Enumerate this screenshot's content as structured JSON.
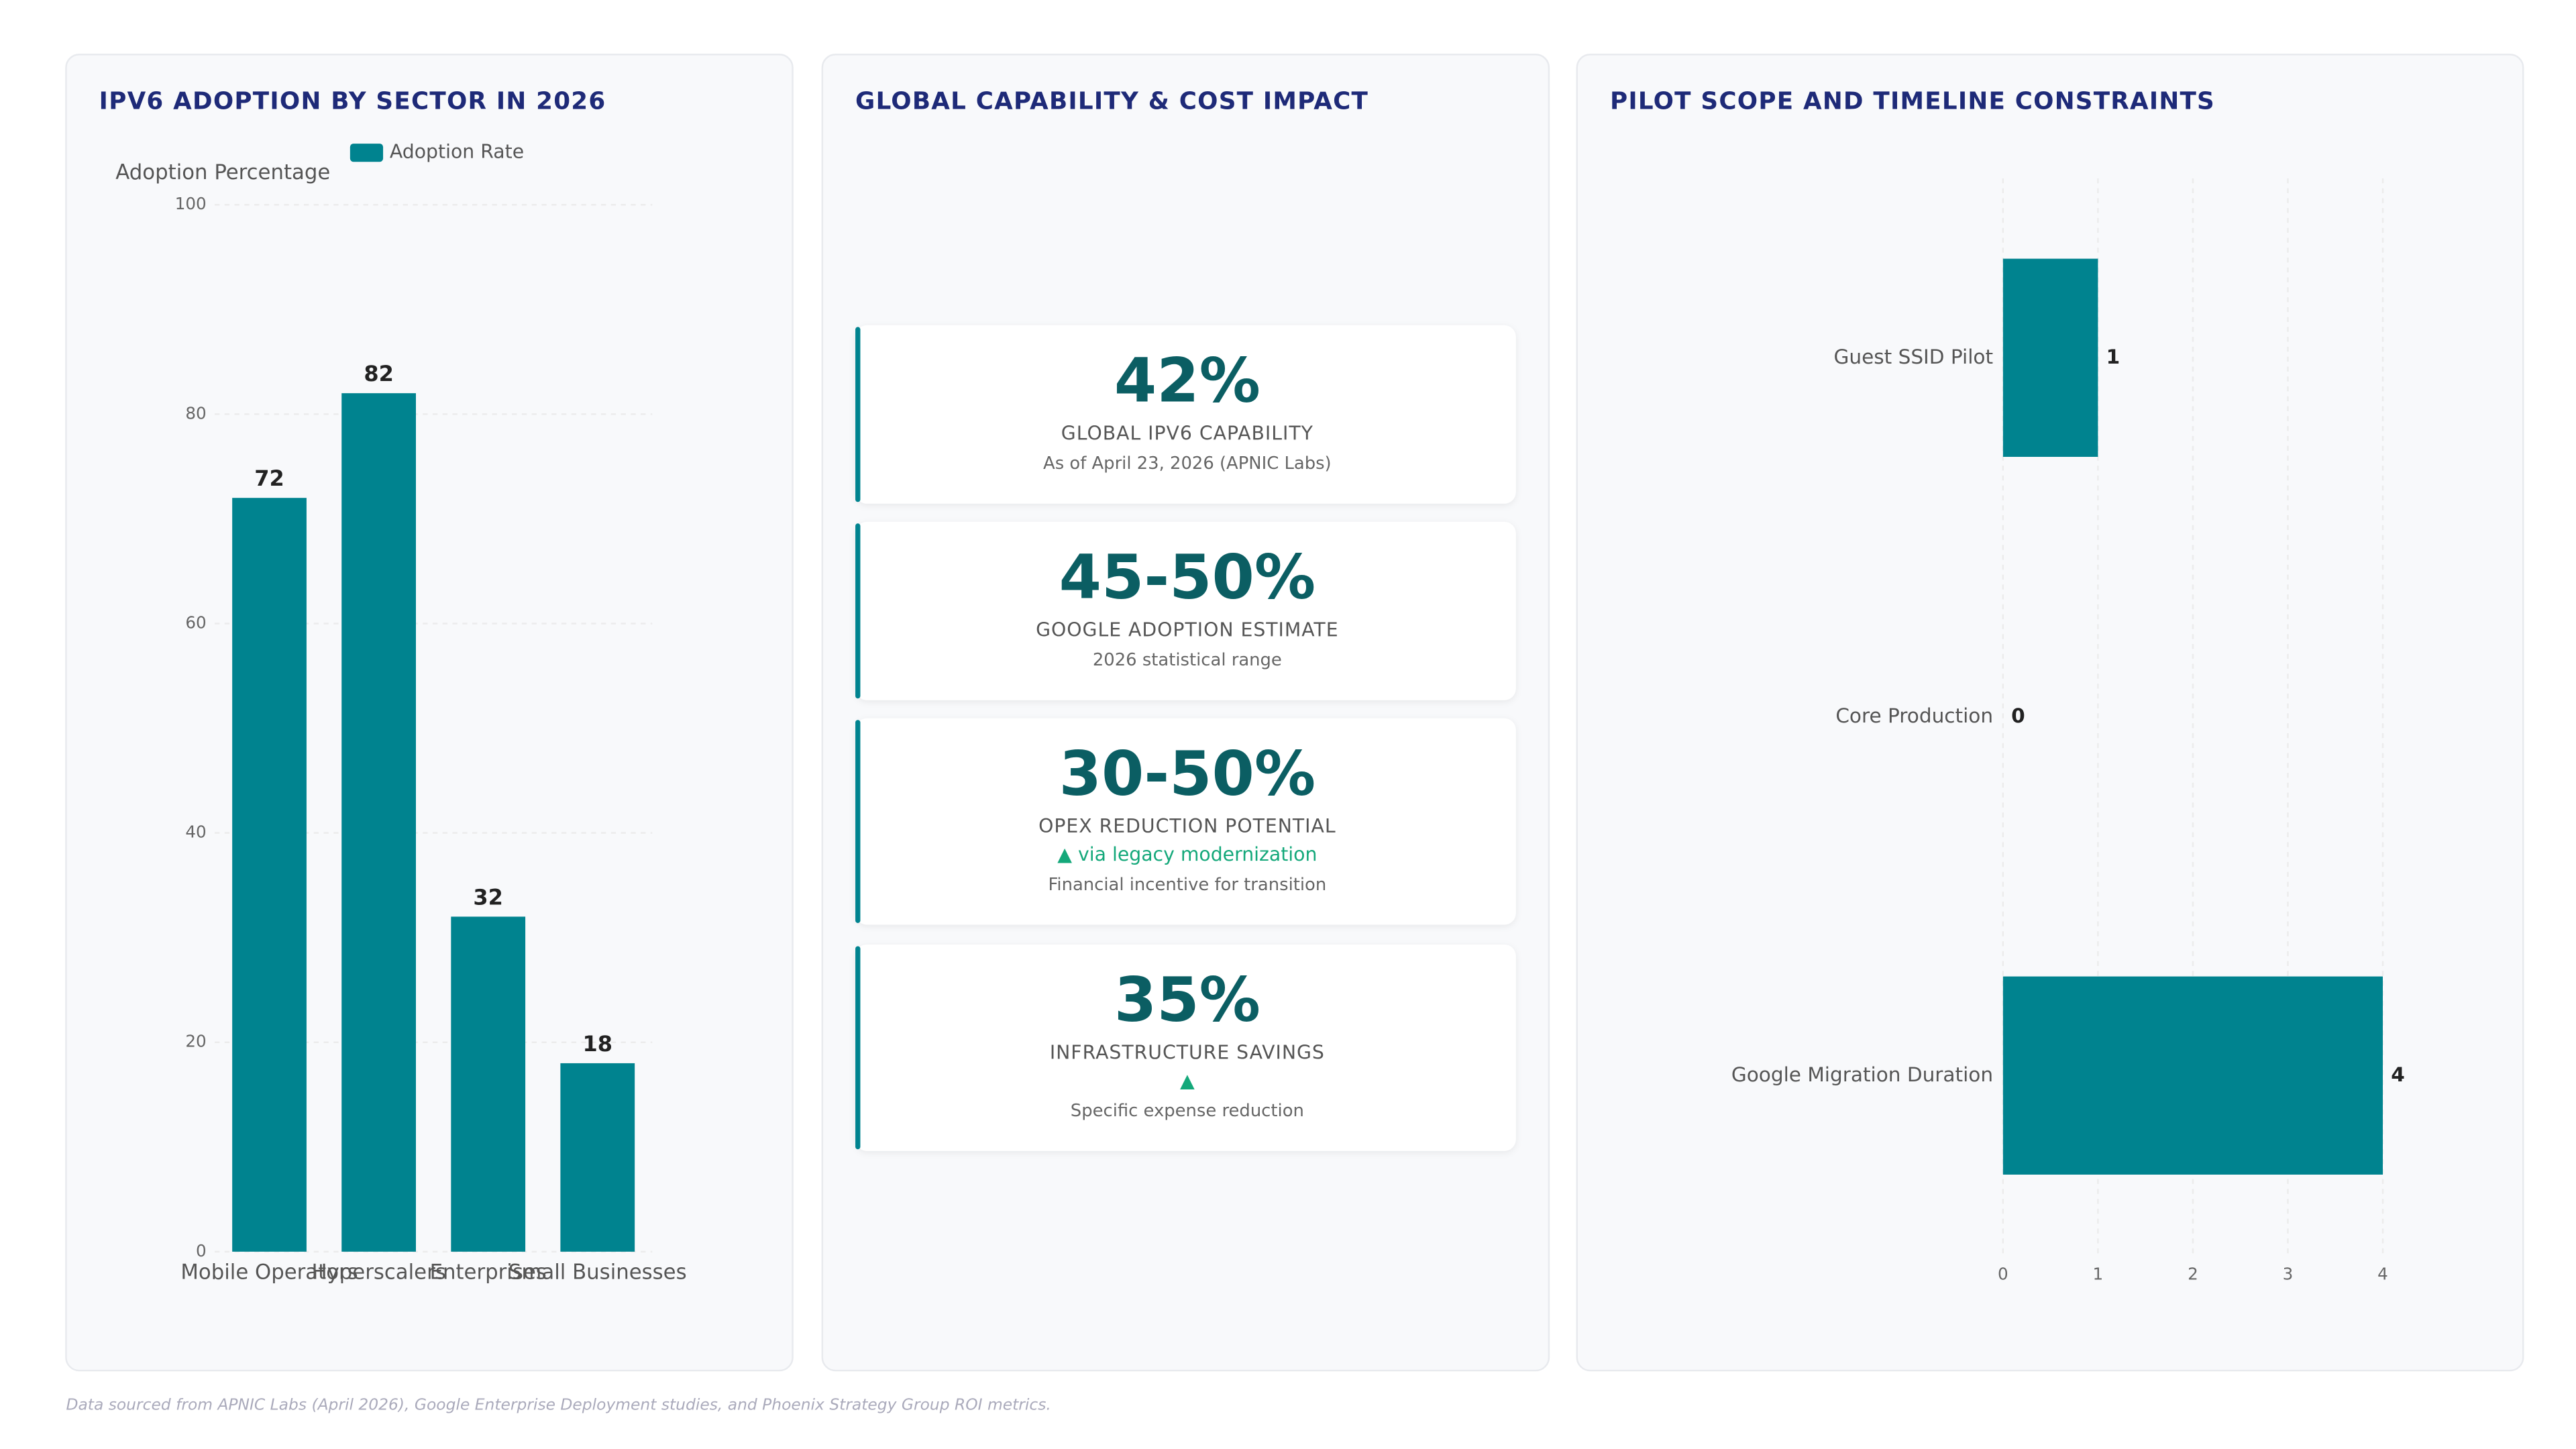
{
  "chart_data": [
    {
      "type": "bar",
      "orientation": "vertical",
      "title": "IPV6 ADOPTION BY SECTOR IN 2026",
      "y_label": "Adoption Percentage",
      "categories": [
        "Mobile Operators",
        "Hyperscalers",
        "Enterprises",
        "Small Businesses"
      ],
      "series": [
        {
          "name": "Adoption Rate",
          "color": "#00838f",
          "values": [
            72,
            82,
            32,
            18
          ]
        }
      ],
      "ylim": [
        0,
        100
      ],
      "yticks": [
        0,
        20,
        40,
        60,
        80,
        100
      ],
      "grid": true,
      "legend": "top"
    },
    {
      "type": "bar",
      "orientation": "horizontal",
      "title": "PILOT SCOPE AND TIMELINE CONSTRAINTS",
      "categories": [
        "Guest SSID Pilot",
        "Core Production",
        "Google Migration Duration"
      ],
      "values": [
        1,
        0,
        4
      ],
      "color": "#00838f",
      "xlim": [
        0,
        4
      ],
      "xticks": [
        0,
        1,
        2,
        3,
        4
      ],
      "grid": true
    }
  ],
  "kpi_panel": {
    "title": "GLOBAL CAPABILITY & COST IMPACT",
    "cards": [
      {
        "value": "42%",
        "label": "GLOBAL IPV6 CAPABILITY",
        "note": "As of April 23, 2026 (APNIC Labs)"
      },
      {
        "value": "45-50%",
        "label": "GOOGLE ADOPTION ESTIMATE",
        "note": "2026 statistical range"
      },
      {
        "value": "30-50%",
        "label": "OPEX REDUCTION POTENTIAL",
        "trend": "▲ via legacy modernization",
        "note": "Financial incentive for transition"
      },
      {
        "value": "35%",
        "label": "INFRASTRUCTURE SAVINGS",
        "trend": "▲",
        "note": "Specific expense reduction"
      }
    ]
  },
  "footer": "Data sourced from APNIC Labs (April 2026), Google Enterprise Deployment studies, and Phoenix Strategy Group ROI metrics."
}
